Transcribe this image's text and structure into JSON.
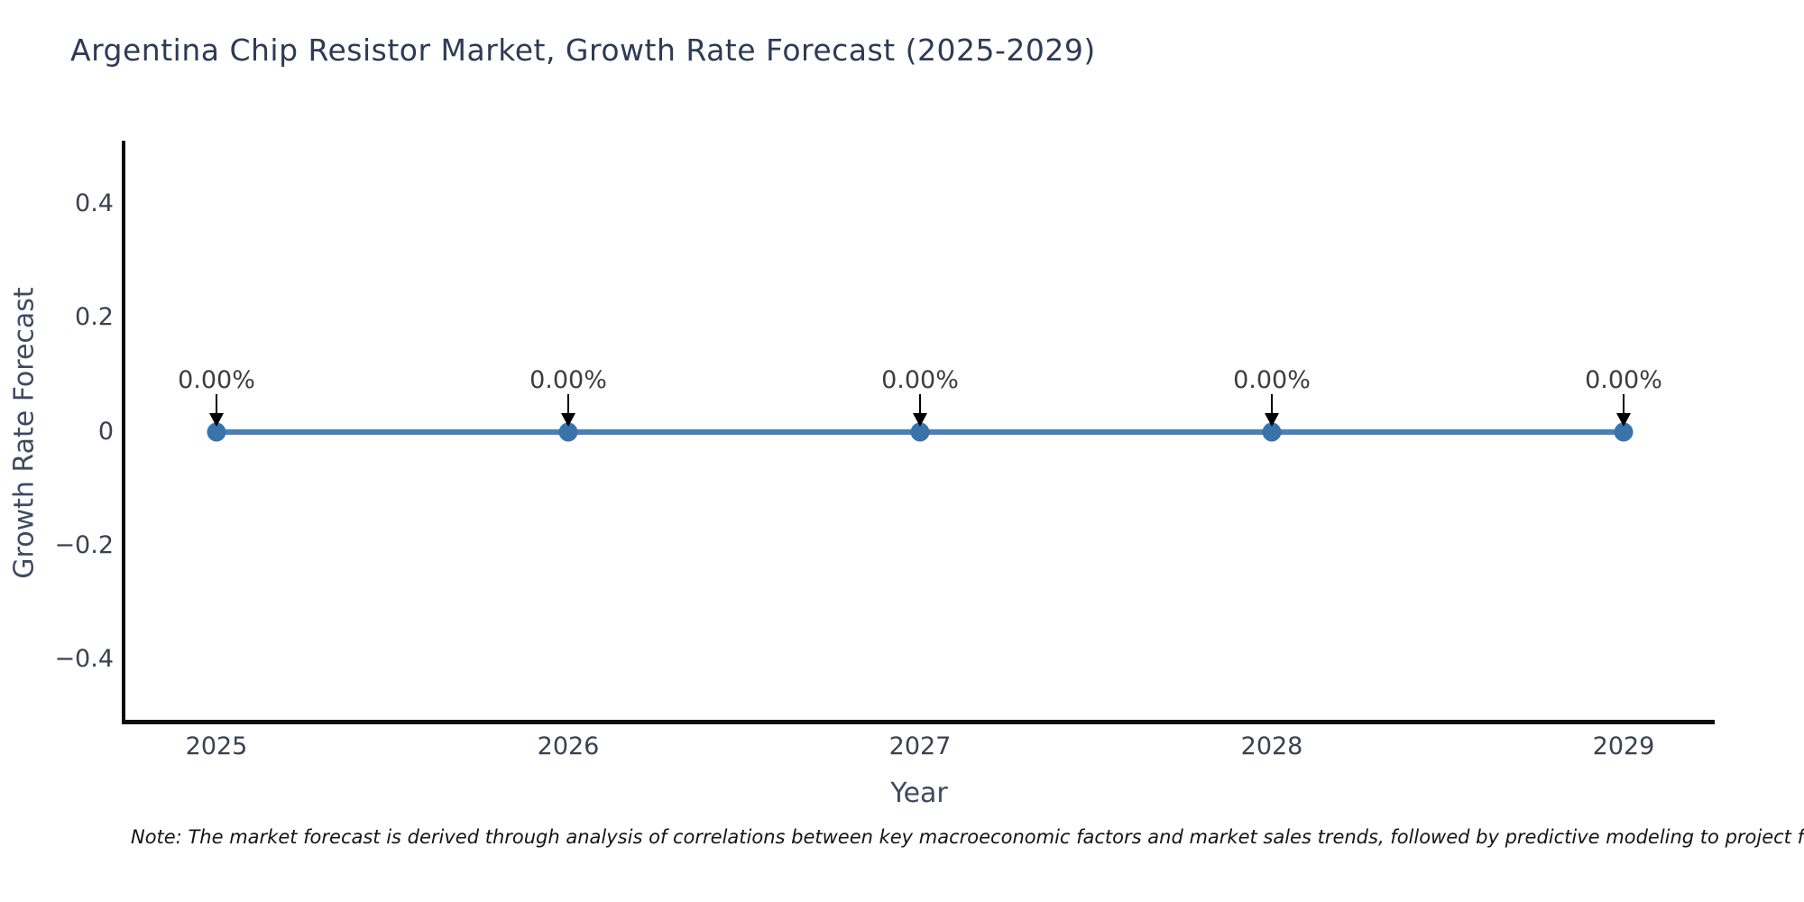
{
  "note": {
    "text": "Note: The market forecast is derived through analysis of correlations between key macroeconomic factors and market sales trends, followed by predictive modeling to project future sales."
  },
  "chart_data": {
    "type": "line",
    "title": "Argentina Chip Resistor Market, Growth Rate Forecast (2025-2029)",
    "xlabel": "Year",
    "ylabel": "Growth Rate Forecast",
    "x": [
      2025,
      2026,
      2027,
      2028,
      2029
    ],
    "series": [
      {
        "name": "Growth Rate Forecast",
        "values": [
          0,
          0,
          0,
          0,
          0
        ]
      }
    ],
    "point_labels": [
      "0.00%",
      "0.00%",
      "0.00%",
      "0.00%",
      "0.00%"
    ],
    "xticks": [
      "2025",
      "2026",
      "2027",
      "2028",
      "2029"
    ],
    "yticks": [
      {
        "value": 0.4,
        "label": "0.4"
      },
      {
        "value": 0.2,
        "label": "0.2"
      },
      {
        "value": 0,
        "label": "0"
      },
      {
        "value": -0.2,
        "label": "−0.2"
      },
      {
        "value": -0.4,
        "label": "−0.4"
      }
    ],
    "ylim": [
      -0.51,
      0.51
    ],
    "grid": false,
    "legend": "none",
    "colors": {
      "line": "#4a80b4",
      "marker": "#3873ac",
      "annotation_arrow": "#000000",
      "annotation_text": "#3d3d3d",
      "axis": "#0d0d0d"
    }
  }
}
